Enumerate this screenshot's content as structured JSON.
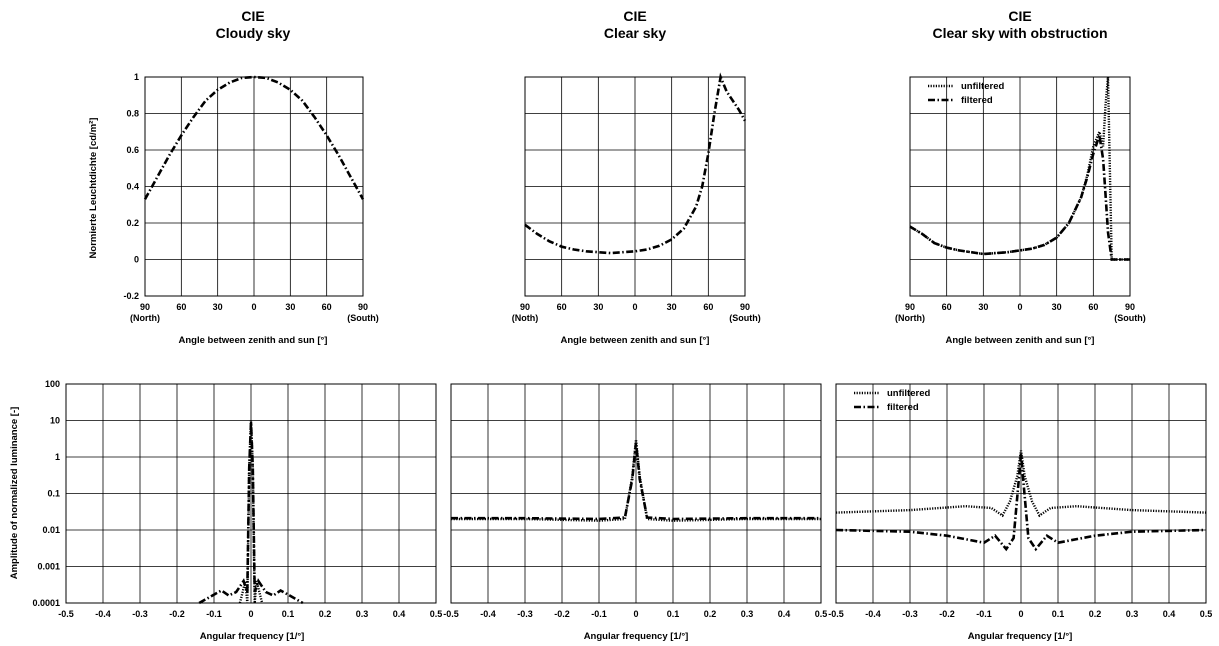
{
  "figure": {
    "titles": [
      {
        "line1": "CIE",
        "line2": "Cloudy sky"
      },
      {
        "line1": "CIE",
        "line2": "Clear sky"
      },
      {
        "line1": "CIE",
        "line2": "Clear sky with obstruction"
      }
    ],
    "top_xlabel": "Angle between zenith and sun [°]",
    "top_ylabel": "Normierte Leuchtdichte [cd/m²]",
    "bottom_xlabel": "Angular frequency [1/°]",
    "bottom_ylabel": "Amplitude of normalized luminance [-]",
    "legend": {
      "unfiltered": "unfiltered",
      "filtered": "filtered"
    }
  },
  "chart_data": [
    {
      "type": "line",
      "xlabel": "Angle between zenith and sun [°]",
      "ylabel": "Normierte Leuchtdichte [cd/m²]",
      "x": [
        -90,
        -80,
        -70,
        -60,
        -50,
        -40,
        -30,
        -20,
        -10,
        0,
        10,
        20,
        30,
        40,
        50,
        60,
        70,
        80,
        90
      ],
      "xticks": [
        "90\n(North)",
        "60",
        "30",
        "0",
        "30",
        "60",
        "90\n(South)"
      ],
      "xlim": [
        -90,
        90
      ],
      "ylim": [
        -0.2,
        1
      ],
      "yticks": [
        "-0.2",
        "0",
        "0.2",
        "0.4",
        "0.6",
        "0.8",
        "1"
      ],
      "grid": true,
      "series": [
        {
          "style": "dash-dot",
          "values": [
            0.33,
            0.45,
            0.57,
            0.68,
            0.78,
            0.87,
            0.93,
            0.97,
            0.995,
            1.0,
            0.995,
            0.97,
            0.93,
            0.87,
            0.78,
            0.68,
            0.57,
            0.45,
            0.33
          ]
        }
      ]
    },
    {
      "type": "line",
      "xlabel": "Angle between zenith and sun [°]",
      "x": [
        -90,
        -80,
        -70,
        -60,
        -50,
        -40,
        -30,
        -20,
        -10,
        0,
        10,
        20,
        30,
        40,
        50,
        55,
        60,
        65,
        70,
        75,
        80,
        85,
        90
      ],
      "xticks": [
        "90\n(Noth)",
        "60",
        "30",
        "0",
        "30",
        "60",
        "90\n(South)"
      ],
      "xlim": [
        -90,
        90
      ],
      "ylim": [
        -0.2,
        1
      ],
      "grid": true,
      "series": [
        {
          "style": "dash-dot",
          "values": [
            0.19,
            0.14,
            0.1,
            0.07,
            0.055,
            0.045,
            0.04,
            0.035,
            0.04,
            0.045,
            0.055,
            0.075,
            0.11,
            0.17,
            0.29,
            0.4,
            0.58,
            0.8,
            1.0,
            0.92,
            0.87,
            0.82,
            0.76
          ]
        }
      ]
    },
    {
      "type": "line",
      "xlabel": "Angle between zenith and sun [°]",
      "x": [
        -90,
        -80,
        -70,
        -60,
        -50,
        -40,
        -30,
        -20,
        -10,
        0,
        10,
        20,
        30,
        40,
        50,
        55,
        60,
        65,
        68,
        70,
        72,
        75,
        80,
        85,
        90
      ],
      "xticks": [
        "90\n(North)",
        "60",
        "30",
        "0",
        "30",
        "60",
        "90\n(South)"
      ],
      "xlim": [
        -90,
        90
      ],
      "ylim": [
        -0.2,
        1
      ],
      "grid": true,
      "legend_position": "top-left",
      "series": [
        {
          "name": "unfiltered",
          "style": "dotted",
          "values": [
            0.18,
            0.14,
            0.09,
            0.065,
            0.05,
            0.04,
            0.03,
            0.035,
            0.04,
            0.05,
            0.06,
            0.08,
            0.12,
            0.2,
            0.34,
            0.46,
            0.62,
            0.7,
            0.62,
            0.85,
            1.0,
            0.0,
            0.0,
            0.0,
            0.0
          ]
        },
        {
          "name": "filtered",
          "style": "dash-dot",
          "values": [
            0.18,
            0.14,
            0.09,
            0.065,
            0.05,
            0.04,
            0.03,
            0.035,
            0.04,
            0.05,
            0.06,
            0.08,
            0.12,
            0.2,
            0.34,
            0.45,
            0.58,
            0.68,
            0.55,
            0.35,
            0.15,
            0.0,
            0.0,
            0.0,
            0.0
          ]
        }
      ]
    },
    {
      "type": "line",
      "xlabel": "Angular frequency [1/°]",
      "ylabel": "Amplitude of normalized luminance [-]",
      "log_y": true,
      "xlim": [
        -0.5,
        0.5
      ],
      "xticks": [
        "-0.5",
        "-0.4",
        "-0.3",
        "-0.2",
        "-0.1",
        "0",
        "0.1",
        "0.2",
        "0.3",
        "0.4",
        "0.5"
      ],
      "ylim": [
        0.0001,
        100
      ],
      "yticks": [
        "0.0001",
        "0.001",
        "0.01",
        "0.1",
        "1",
        "10",
        "100"
      ],
      "grid": true,
      "series": [
        {
          "style": "dotted",
          "x": [
            -0.03,
            -0.015,
            -0.01,
            -0.005,
            0,
            0.005,
            0.01,
            0.015,
            0.03
          ],
          "values": [
            0.0001,
            0.0004,
            0.0001,
            0.5,
            10,
            0.5,
            0.0001,
            0.0004,
            0.0001
          ]
        },
        {
          "style": "dash-dot",
          "x": [
            -0.14,
            -0.12,
            -0.1,
            -0.08,
            -0.06,
            -0.04,
            -0.02,
            -0.01,
            -0.005,
            0,
            0.005,
            0.01,
            0.02,
            0.04,
            0.06,
            0.08,
            0.1,
            0.12,
            0.14
          ],
          "values": [
            0.0001,
            0.00013,
            0.00017,
            0.00022,
            0.00016,
            0.0002,
            0.0004,
            0.0002,
            0.5,
            9,
            0.5,
            0.0002,
            0.0004,
            0.0002,
            0.00016,
            0.00022,
            0.00017,
            0.00013,
            0.0001
          ]
        }
      ]
    },
    {
      "type": "line",
      "xlabel": "Angular frequency [1/°]",
      "log_y": true,
      "xlim": [
        -0.5,
        0.5
      ],
      "xticks": [
        "-0.5",
        "-0.4",
        "-0.3",
        "-0.2",
        "-0.1",
        "0",
        "0.1",
        "0.2",
        "0.3",
        "0.4",
        "0.5"
      ],
      "ylim": [
        0.0001,
        100
      ],
      "grid": true,
      "series": [
        {
          "style": "dotted",
          "x": [
            -0.5,
            -0.3,
            -0.1,
            -0.03,
            -0.01,
            0,
            0.01,
            0.03,
            0.1,
            0.3,
            0.5
          ],
          "values": [
            0.02,
            0.02,
            0.018,
            0.02,
            0.3,
            3,
            0.3,
            0.02,
            0.018,
            0.02,
            0.02
          ]
        },
        {
          "style": "dash-dot",
          "x": [
            -0.5,
            -0.3,
            -0.1,
            -0.03,
            -0.01,
            0,
            0.01,
            0.03,
            0.1,
            0.3,
            0.5
          ],
          "values": [
            0.021,
            0.021,
            0.02,
            0.022,
            0.25,
            2.5,
            0.25,
            0.022,
            0.02,
            0.021,
            0.021
          ]
        }
      ]
    },
    {
      "type": "line",
      "xlabel": "Angular frequency [1/°]",
      "log_y": true,
      "xlim": [
        -0.5,
        0.5
      ],
      "xticks": [
        "-0.5",
        "-0.4",
        "-0.3",
        "-0.2",
        "-0.1",
        "0",
        "0.1",
        "0.2",
        "0.3",
        "0.4",
        "0.5"
      ],
      "ylim": [
        0.0001,
        100
      ],
      "grid": true,
      "legend_position": "top-left",
      "series": [
        {
          "name": "unfiltered",
          "style": "dotted",
          "x": [
            -0.5,
            -0.3,
            -0.15,
            -0.08,
            -0.05,
            -0.03,
            -0.01,
            0,
            0.01,
            0.03,
            0.05,
            0.08,
            0.15,
            0.3,
            0.5
          ],
          "values": [
            0.03,
            0.035,
            0.045,
            0.04,
            0.025,
            0.06,
            0.3,
            1.5,
            0.3,
            0.06,
            0.025,
            0.04,
            0.045,
            0.035,
            0.03
          ]
        },
        {
          "name": "filtered",
          "style": "dash-dot",
          "x": [
            -0.5,
            -0.3,
            -0.2,
            -0.1,
            -0.07,
            -0.04,
            -0.02,
            -0.005,
            0,
            0.005,
            0.02,
            0.04,
            0.07,
            0.1,
            0.2,
            0.3,
            0.5
          ],
          "values": [
            0.01,
            0.009,
            0.007,
            0.0045,
            0.007,
            0.003,
            0.006,
            0.3,
            1.2,
            0.3,
            0.006,
            0.003,
            0.007,
            0.0045,
            0.007,
            0.009,
            0.01
          ]
        }
      ]
    }
  ]
}
